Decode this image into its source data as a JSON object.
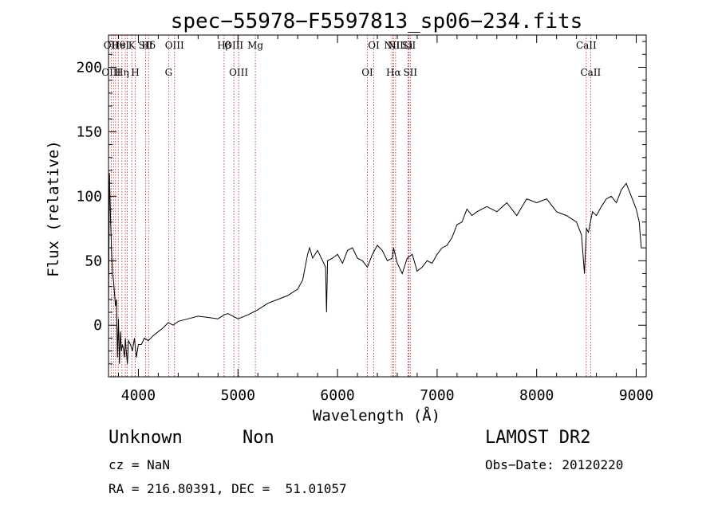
{
  "chart_data": {
    "type": "line",
    "title": "spec−55978−F5597813_sp06−234.fits",
    "xlabel": "Wavelength (Å)",
    "ylabel": "Flux (relative)",
    "xlim": [
      3700,
      9100
    ],
    "ylim": [
      -40,
      225
    ],
    "x_ticks": [
      4000,
      5000,
      6000,
      7000,
      8000,
      9000
    ],
    "y_ticks": [
      0,
      50,
      100,
      150,
      200
    ],
    "grid": false,
    "series": [
      {
        "x": [
          3700,
          3710,
          3720,
          3730,
          3740,
          3750,
          3760,
          3770,
          3780,
          3790,
          3800,
          3810,
          3820,
          3830,
          3840,
          3850,
          3860,
          3870,
          3880,
          3890,
          3900,
          3920,
          3940,
          3960,
          3980,
          4000,
          4030,
          4060,
          4100,
          4150,
          4200,
          4250,
          4300,
          4350,
          4400,
          4500,
          4600,
          4700,
          4800,
          4860,
          4900,
          5000,
          5100,
          5200,
          5300,
          5400,
          5500,
          5600,
          5650,
          5700,
          5720,
          5750,
          5800,
          5850,
          5880,
          5890,
          5900,
          5950,
          6000,
          6050,
          6100,
          6150,
          6200,
          6250,
          6300,
          6350,
          6400,
          6450,
          6500,
          6550,
          6563,
          6600,
          6650,
          6700,
          6750,
          6800,
          6850,
          6900,
          6950,
          7000,
          7050,
          7100,
          7150,
          7200,
          7250,
          7300,
          7350,
          7400,
          7500,
          7600,
          7700,
          7800,
          7900,
          8000,
          8100,
          8200,
          8300,
          8400,
          8450,
          8480,
          8500,
          8520,
          8540,
          8560,
          8600,
          8650,
          8700,
          8750,
          8800,
          8850,
          8900,
          8950,
          9000,
          9030,
          9040,
          9050,
          9060
        ],
        "y": [
          12,
          118,
          85,
          60,
          40,
          35,
          25,
          15,
          20,
          -25,
          5,
          -30,
          -5,
          -20,
          -15,
          -18,
          -25,
          -10,
          -22,
          -30,
          -12,
          -15,
          -20,
          -10,
          -25,
          -15,
          -15,
          -10,
          -12,
          -8,
          -5,
          -2,
          2,
          0,
          3,
          5,
          7,
          6,
          5,
          8,
          9,
          5,
          8,
          12,
          17,
          20,
          23,
          28,
          35,
          55,
          60,
          52,
          58,
          50,
          45,
          10,
          50,
          52,
          55,
          48,
          58,
          60,
          52,
          50,
          45,
          55,
          62,
          58,
          50,
          52,
          60,
          48,
          40,
          52,
          55,
          42,
          45,
          50,
          48,
          55,
          60,
          62,
          68,
          78,
          80,
          90,
          85,
          88,
          92,
          88,
          95,
          85,
          98,
          95,
          98,
          88,
          85,
          80,
          70,
          40,
          75,
          72,
          80,
          88,
          85,
          92,
          98,
          100,
          95,
          105,
          110,
          100,
          90,
          80,
          70,
          60,
          60
        ]
      }
    ],
    "annotations": {
      "lines_upper": [
        {
          "label": "Hθ",
          "x": 3798
        },
        {
          "label": "OII",
          "x": 3727
        },
        {
          "label": "HeI",
          "x": 3820
        },
        {
          "label": "K",
          "x": 3934
        },
        {
          "label": "SII",
          "x": 4072
        },
        {
          "label": "Hδ",
          "x": 4102
        },
        {
          "label": "OIII",
          "x": 4363
        },
        {
          "label": "Hβ",
          "x": 4861
        },
        {
          "label": "OIII",
          "x": 4959
        },
        {
          "label": "Mg",
          "x": 5175
        },
        {
          "label": "OI",
          "x": 6364
        },
        {
          "label": "NII",
          "x": 6548
        },
        {
          "label": "NII",
          "x": 6583
        },
        {
          "label": "Li",
          "x": 6708
        },
        {
          "label": "SII",
          "x": 6716
        },
        {
          "label": "CaII",
          "x": 8498
        }
      ],
      "lines_lower": [
        {
          "label": "OIII",
          "x": 3727
        },
        {
          "label": "Hη",
          "x": 3835
        },
        {
          "label": "H",
          "x": 3968
        },
        {
          "label": "G",
          "x": 4304
        },
        {
          "label": "OIII",
          "x": 5007
        },
        {
          "label": "OI",
          "x": 6300
        },
        {
          "label": "Hα",
          "x": 6563
        },
        {
          "label": "SII",
          "x": 6731
        },
        {
          "label": "CaII",
          "x": 8542
        }
      ],
      "dotted_lines_x": [
        3727,
        3750,
        3771,
        3798,
        3835,
        3869,
        3889,
        3934,
        3968,
        4072,
        4102,
        4304,
        4363,
        4861,
        4959,
        5007,
        5175,
        6300,
        6364,
        6548,
        6563,
        6583,
        6708,
        6716,
        6731,
        8498,
        8542
      ]
    }
  },
  "footer": {
    "object_class": "Unknown",
    "subclass": "Non",
    "survey": "LAMOST DR2",
    "cz": "cz = NaN",
    "obs_date": "Obs−Date: 20120220",
    "coords": "RA = 216.80391, DEC =  51.01057"
  }
}
